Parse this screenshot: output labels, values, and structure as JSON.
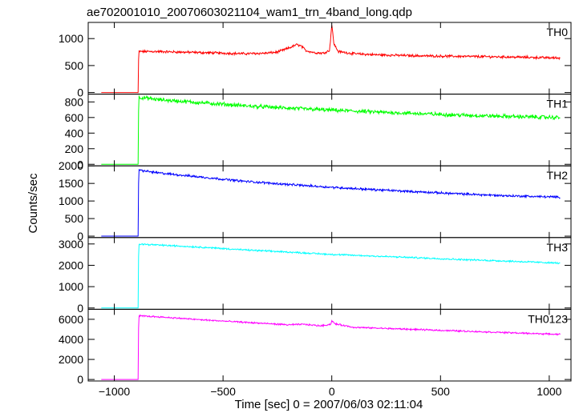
{
  "chart_data": {
    "type": "line",
    "title": "ae702001010_20070603021104_wam1_trn_4band_long.qdp",
    "xlabel": "Time [sec] 0 = 2007/06/03 02:11:04",
    "ylabel": "Counts/sec",
    "xlim": [
      -1120,
      1100
    ],
    "x_ticks": [
      -1000,
      -500,
      0,
      500,
      1000
    ],
    "x_tick_labels": [
      "−1000",
      "−500",
      "0",
      "500",
      "1000"
    ],
    "grid": false,
    "panels": [
      {
        "name": "TH0",
        "color": "#ff0000",
        "ylim": [
          -30,
          1300
        ],
        "y_ticks": [
          0,
          500,
          1000
        ],
        "y_tick_labels": [
          "0",
          "500",
          "1000"
        ],
        "points": [
          [
            -1060,
            0
          ],
          [
            -900,
            0
          ],
          [
            -890,
            0
          ],
          [
            -888,
            760
          ],
          [
            -800,
            760
          ],
          [
            -700,
            750
          ],
          [
            -600,
            740
          ],
          [
            -500,
            730
          ],
          [
            -400,
            720
          ],
          [
            -300,
            730
          ],
          [
            -250,
            750
          ],
          [
            -200,
            820
          ],
          [
            -160,
            890
          ],
          [
            -140,
            860
          ],
          [
            -120,
            780
          ],
          [
            -80,
            740
          ],
          [
            -40,
            730
          ],
          [
            -10,
            780
          ],
          [
            0,
            1260
          ],
          [
            10,
            900
          ],
          [
            30,
            760
          ],
          [
            100,
            720
          ],
          [
            200,
            700
          ],
          [
            400,
            680
          ],
          [
            600,
            670
          ],
          [
            800,
            660
          ],
          [
            1050,
            640
          ]
        ],
        "noise": 18
      },
      {
        "name": "TH1",
        "color": "#00ff00",
        "ylim": [
          -20,
          900
        ],
        "y_ticks": [
          0,
          200,
          400,
          600,
          800
        ],
        "y_tick_labels": [
          "0",
          "200",
          "400",
          "600",
          "800"
        ],
        "points": [
          [
            -1060,
            0
          ],
          [
            -900,
            0
          ],
          [
            -890,
            0
          ],
          [
            -888,
            860
          ],
          [
            -800,
            830
          ],
          [
            -600,
            790
          ],
          [
            -400,
            750
          ],
          [
            -200,
            720
          ],
          [
            0,
            695
          ],
          [
            200,
            670
          ],
          [
            400,
            650
          ],
          [
            600,
            630
          ],
          [
            800,
            615
          ],
          [
            1050,
            600
          ]
        ],
        "noise": 20
      },
      {
        "name": "TH2",
        "color": "#0000ff",
        "ylim": [
          -40,
          2000
        ],
        "y_ticks": [
          0,
          500,
          1000,
          1500,
          2000
        ],
        "y_tick_labels": [
          "0",
          "500",
          "1000",
          "1500",
          "2000"
        ],
        "points": [
          [
            -1060,
            0
          ],
          [
            -900,
            0
          ],
          [
            -890,
            0
          ],
          [
            -888,
            1880
          ],
          [
            -800,
            1800
          ],
          [
            -600,
            1680
          ],
          [
            -400,
            1560
          ],
          [
            -200,
            1470
          ],
          [
            0,
            1390
          ],
          [
            200,
            1320
          ],
          [
            400,
            1260
          ],
          [
            600,
            1200
          ],
          [
            800,
            1150
          ],
          [
            1050,
            1110
          ]
        ],
        "noise": 25
      },
      {
        "name": "TH3",
        "color": "#00ffff",
        "ylim": [
          -60,
          3300
        ],
        "y_ticks": [
          0,
          1000,
          2000,
          3000
        ],
        "y_tick_labels": [
          "0",
          "1000",
          "2000",
          "3000"
        ],
        "points": [
          [
            -1060,
            0
          ],
          [
            -900,
            0
          ],
          [
            -890,
            0
          ],
          [
            -888,
            3000
          ],
          [
            -800,
            2950
          ],
          [
            -600,
            2850
          ],
          [
            -400,
            2720
          ],
          [
            -200,
            2620
          ],
          [
            0,
            2510
          ],
          [
            200,
            2430
          ],
          [
            400,
            2350
          ],
          [
            600,
            2270
          ],
          [
            800,
            2200
          ],
          [
            1050,
            2100
          ]
        ],
        "noise": 30
      },
      {
        "name": "TH0123",
        "color": "#ff00ff",
        "ylim": [
          -150,
          7000
        ],
        "y_ticks": [
          0,
          2000,
          4000,
          6000
        ],
        "y_tick_labels": [
          "0",
          "2000",
          "4000",
          "6000"
        ],
        "points": [
          [
            -1060,
            0
          ],
          [
            -900,
            0
          ],
          [
            -890,
            0
          ],
          [
            -888,
            6350
          ],
          [
            -800,
            6250
          ],
          [
            -600,
            5950
          ],
          [
            -400,
            5700
          ],
          [
            -200,
            5450
          ],
          [
            -130,
            5500
          ],
          [
            -50,
            5350
          ],
          [
            -5,
            5500
          ],
          [
            0,
            5850
          ],
          [
            15,
            5550
          ],
          [
            100,
            5200
          ],
          [
            300,
            5050
          ],
          [
            500,
            4900
          ],
          [
            700,
            4750
          ],
          [
            900,
            4600
          ],
          [
            1050,
            4500
          ]
        ],
        "noise": 60
      }
    ]
  }
}
